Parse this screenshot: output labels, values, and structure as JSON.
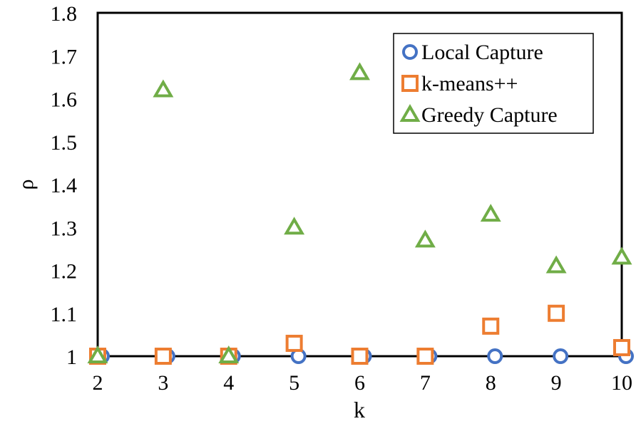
{
  "chart_data": {
    "type": "scatter",
    "title": "",
    "xlabel": "k",
    "ylabel": "ρ",
    "x": [
      2,
      3,
      4,
      5,
      6,
      7,
      8,
      9,
      10
    ],
    "xlim": [
      2,
      10
    ],
    "ylim": [
      1,
      1.8
    ],
    "x_ticks": [
      "2",
      "3",
      "4",
      "5",
      "6",
      "7",
      "8",
      "9",
      "10"
    ],
    "y_ticks": [
      "1",
      "1.1",
      "1.2",
      "1.3",
      "1.4",
      "1.5",
      "1.6",
      "1.7",
      "1.8"
    ],
    "grid": false,
    "legend_position": "top-right",
    "series": [
      {
        "name": "Local Capture",
        "marker": "circle",
        "color": "#4472c4",
        "values": [
          1.0,
          1.0,
          1.0,
          1.0,
          1.0,
          1.0,
          1.0,
          1.0,
          1.0
        ]
      },
      {
        "name": "k-means++",
        "marker": "square",
        "color": "#ed7d31",
        "values": [
          1.0,
          1.0,
          1.0,
          1.03,
          1.0,
          1.0,
          1.07,
          1.1,
          1.02
        ]
      },
      {
        "name": "Greedy Capture",
        "marker": "triangle",
        "color": "#70ad47",
        "values": [
          1.0,
          1.62,
          1.0,
          1.3,
          1.66,
          1.27,
          1.33,
          1.21,
          1.23
        ]
      }
    ]
  }
}
